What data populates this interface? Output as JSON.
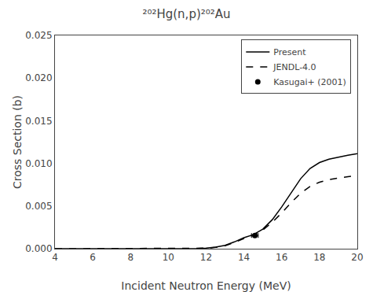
{
  "chart_data": {
    "type": "line",
    "title": "²⁰²Hg(n,p)²⁰²Au",
    "xlabel": "Incident Neutron Energy (MeV)",
    "ylabel": "Cross Section (b)",
    "xlim": [
      4,
      20
    ],
    "ylim": [
      0,
      0.025
    ],
    "xticks": [
      4,
      6,
      8,
      10,
      12,
      14,
      16,
      18,
      20
    ],
    "yticks": [
      {
        "value": 0,
        "label": "0.000"
      },
      0.005,
      {
        "value": 0.01,
        "label": "0.010"
      },
      0.015,
      {
        "value": 0.02,
        "label": "0.020"
      },
      0.025
    ],
    "grid": false,
    "legend": "upper right",
    "series": [
      {
        "name": "Present",
        "type": "line",
        "color": "black",
        "line_style": "solid",
        "x": [
          4,
          5,
          6,
          7,
          8,
          9,
          10,
          10.5,
          11.0,
          11.5,
          12.0,
          12.5,
          13.0,
          13.5,
          14.0,
          14.5,
          15.0,
          15.5,
          16.0,
          16.5,
          17.0,
          17.5,
          18.0,
          18.5,
          19.0,
          19.5,
          20.0
        ],
        "values": [
          0,
          0,
          0,
          0,
          0,
          0,
          0,
          5e-06,
          1e-05,
          3e-05,
          8e-05,
          0.00018,
          0.0004,
          0.0008,
          0.0013,
          0.00165,
          0.0023,
          0.0034,
          0.0049,
          0.0066,
          0.0082,
          0.0094,
          0.0101,
          0.0105,
          0.01075,
          0.01095,
          0.01115
        ]
      },
      {
        "name": "JENDL-4.0",
        "type": "line",
        "color": "black",
        "line_style": "dash",
        "x": [
          4,
          5,
          6,
          7,
          8,
          9,
          10,
          10.5,
          11.0,
          11.5,
          12.0,
          12.5,
          13.0,
          13.5,
          14.0,
          14.5,
          15.0,
          15.5,
          16.0,
          16.5,
          17.0,
          17.5,
          18.0,
          18.5,
          19.0,
          19.5,
          20.0
        ],
        "values": [
          0,
          0,
          0,
          0,
          0,
          0,
          0,
          3e-06,
          8e-06,
          2e-05,
          6e-05,
          0.00015,
          0.00035,
          0.00072,
          0.0012,
          0.0016,
          0.0022,
          0.0031,
          0.0042,
          0.0054,
          0.0065,
          0.0073,
          0.0078,
          0.0081,
          0.0083,
          0.00845,
          0.00855
        ]
      },
      {
        "name": "Kasugai+ (2001)",
        "type": "scatter",
        "color": "black",
        "marker": "circle",
        "x": [
          14.58
        ],
        "values": [
          0.00155
        ],
        "xerr": [
          0.18
        ],
        "yerr": [
          0.00013
        ]
      }
    ]
  }
}
